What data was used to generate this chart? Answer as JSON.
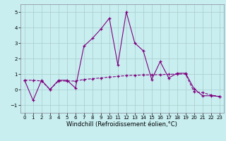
{
  "xlabel": "Windchill (Refroidissement éolien,°C)",
  "x": [
    0,
    1,
    2,
    3,
    4,
    5,
    6,
    7,
    8,
    9,
    10,
    11,
    12,
    13,
    14,
    15,
    16,
    17,
    18,
    19,
    20,
    21,
    22,
    23
  ],
  "line1": [
    0.6,
    -0.7,
    0.6,
    0.0,
    0.6,
    0.6,
    0.1,
    2.8,
    3.3,
    3.9,
    4.6,
    1.6,
    5.0,
    3.0,
    2.5,
    0.65,
    1.8,
    0.75,
    1.05,
    1.05,
    0.05,
    -0.4,
    -0.4,
    -0.45
  ],
  "line2": [
    0.6,
    0.6,
    0.55,
    0.0,
    0.55,
    0.55,
    0.55,
    0.65,
    0.7,
    0.75,
    0.8,
    0.85,
    0.9,
    0.92,
    0.94,
    0.95,
    0.96,
    0.98,
    1.0,
    1.0,
    -0.15,
    -0.2,
    -0.35,
    -0.45
  ],
  "bg_color": "#c8eef0",
  "grid_color": "#aacccc",
  "line1_color": "#800080",
  "line2_color": "#800080",
  "ylim": [
    -1.5,
    5.5
  ],
  "xlim": [
    -0.5,
    23.5
  ],
  "yticks": [
    -1,
    0,
    1,
    2,
    3,
    4,
    5
  ],
  "xticks": [
    0,
    1,
    2,
    3,
    4,
    5,
    6,
    7,
    8,
    9,
    10,
    11,
    12,
    13,
    14,
    15,
    16,
    17,
    18,
    19,
    20,
    21,
    22,
    23
  ],
  "xlabel_fontsize": 6,
  "tick_fontsize": 5
}
